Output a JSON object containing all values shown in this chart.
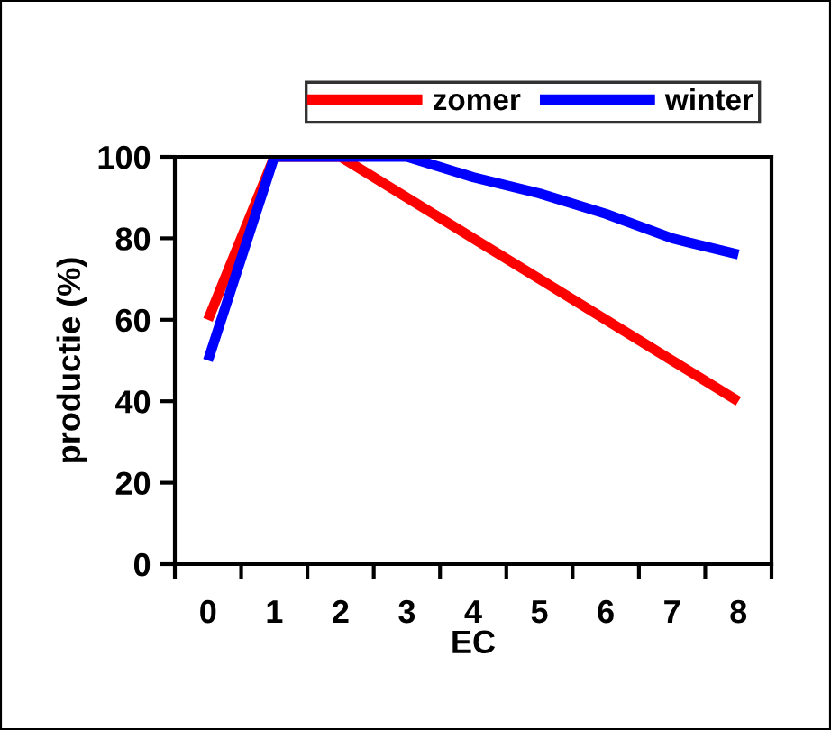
{
  "chart_data": {
    "type": "line",
    "xlabel": "EC",
    "ylabel": "productie (%)",
    "categories": [
      "0",
      "1",
      "2",
      "3",
      "4",
      "5",
      "6",
      "7",
      "8"
    ],
    "series": [
      {
        "name": "zomer",
        "color": "#ff0000",
        "values": [
          60,
          100,
          100,
          90,
          80,
          70,
          60,
          50,
          40
        ]
      },
      {
        "name": "winter",
        "color": "#0000ff",
        "values": [
          50,
          100,
          100,
          100,
          95,
          91,
          86,
          80,
          76
        ]
      }
    ],
    "ylim": [
      0,
      100
    ],
    "yticks": [
      0,
      20,
      40,
      60,
      80,
      100
    ],
    "grid": false,
    "legend": "top",
    "marker": "none",
    "line_style": "solid"
  }
}
